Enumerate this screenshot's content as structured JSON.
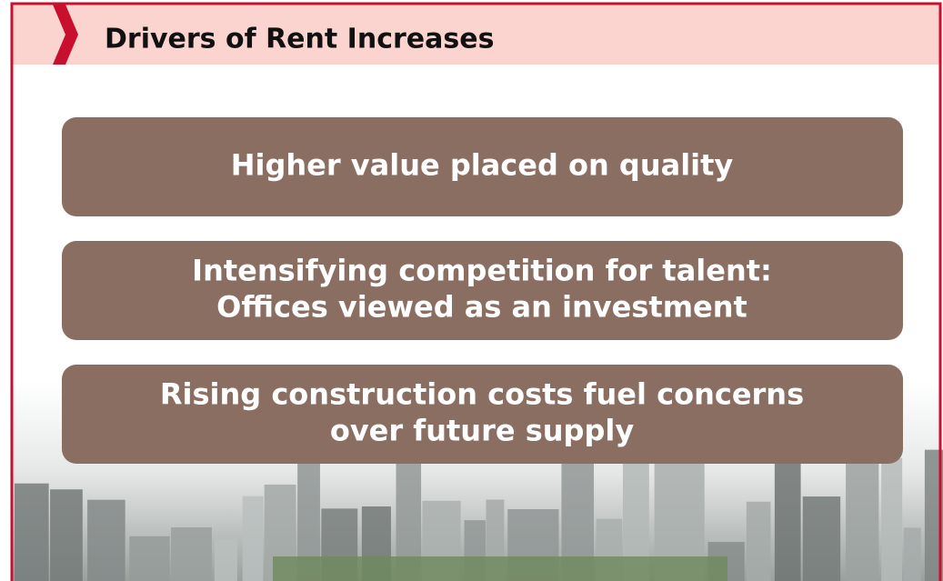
{
  "header": {
    "title": "Drivers of Rent Increases"
  },
  "boxes": [
    {
      "lines": [
        "Higher value placed on quality"
      ]
    },
    {
      "lines": [
        "Intensifying competition for talent:",
        "Offices viewed as an investment"
      ]
    },
    {
      "lines": [
        "Rising construction costs fuel concerns",
        "over future supply"
      ]
    }
  ]
}
